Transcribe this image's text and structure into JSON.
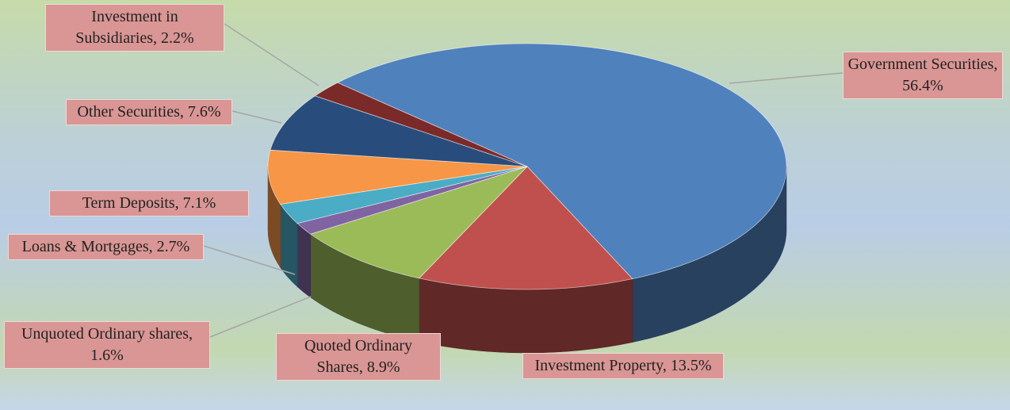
{
  "chart_data": {
    "type": "pie3d",
    "categories": [
      "Government Securities",
      "Investment Property",
      "Quoted Ordinary Shares",
      "Unquoted Ordinary shares",
      "Loans & Mortgages",
      "Term Deposits",
      "Other Securities",
      "Investment in Subsidiaries"
    ],
    "values": [
      56.4,
      13.5,
      8.9,
      1.6,
      2.7,
      7.1,
      7.6,
      2.2
    ],
    "value_labels": [
      "Government Securities, 56.4%",
      "Investment Property, 13.5%",
      "Quoted Ordinary Shares, 8.9%",
      "Unquoted Ordinary shares, 1.6%",
      "Loans & Mortgages, 2.7%",
      "Term Deposits, 7.1%",
      "Other Securities, 7.6%",
      "Investment in Subsidiaries, 2.2%"
    ],
    "colors": [
      "#4f81bd",
      "#c0504d",
      "#9bbb59",
      "#8064a2",
      "#4bacc6",
      "#f79646",
      "#284d7c",
      "#7b2a2a"
    ]
  }
}
